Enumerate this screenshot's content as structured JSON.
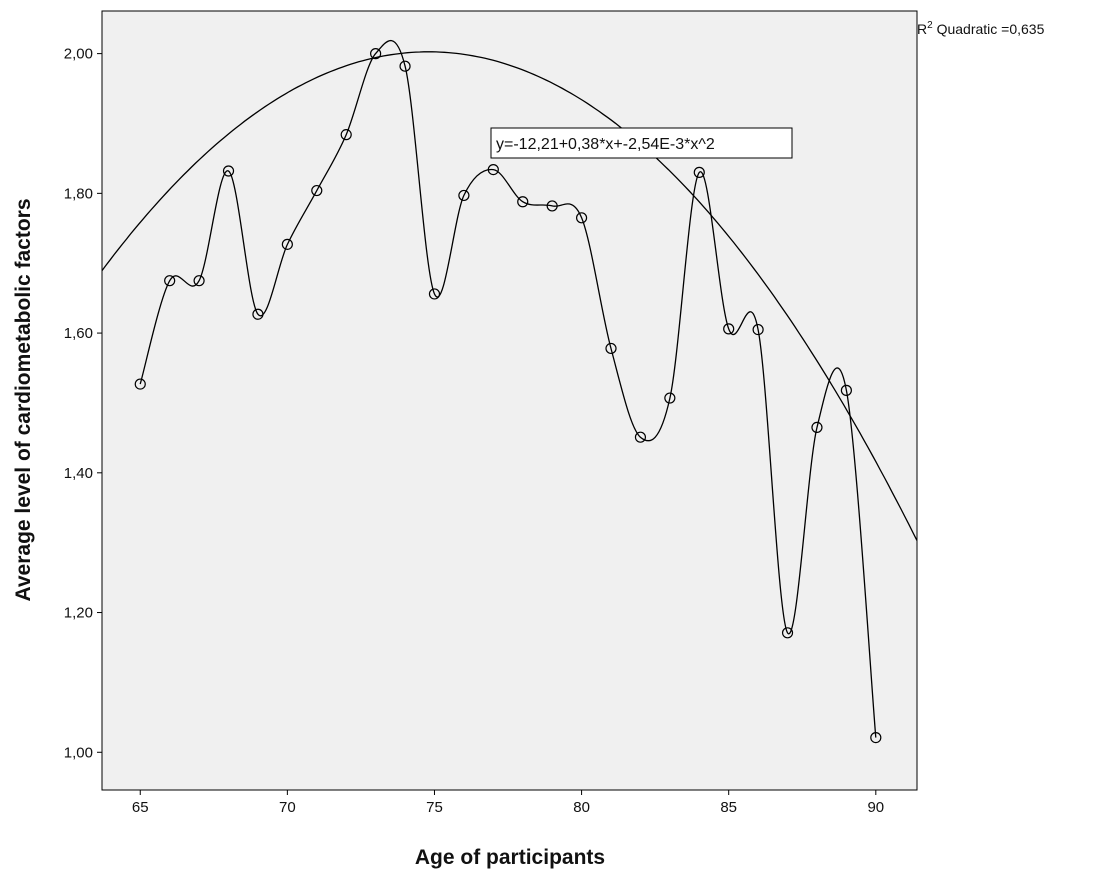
{
  "chart_data": {
    "type": "scatter",
    "xlabel": "Age of participants",
    "ylabel": "Average level of cardiometabolic factors",
    "xlim": [
      63.7,
      91.4
    ],
    "ylim": [
      0.946,
      2.061
    ],
    "xticks": [
      "65",
      "70",
      "75",
      "80",
      "85",
      "90"
    ],
    "xtick_values": [
      65,
      70,
      75,
      80,
      85,
      90
    ],
    "yticks": [
      "1,00",
      "1,20",
      "1,40",
      "1,60",
      "1,80",
      "2,00"
    ],
    "ytick_values": [
      1.0,
      1.2,
      1.4,
      1.6,
      1.8,
      2.0
    ],
    "grid": false,
    "plot_background": "#f0f0f0",
    "line_color": "#000000",
    "points": {
      "x": [
        65,
        66,
        67,
        68,
        69,
        70,
        71,
        72,
        73,
        74,
        75,
        76,
        77,
        78,
        79,
        80,
        81,
        82,
        83,
        84,
        85,
        86,
        87,
        88,
        89,
        90
      ],
      "y": [
        1.527,
        1.675,
        1.675,
        1.832,
        1.627,
        1.727,
        1.804,
        1.884,
        2.0,
        1.982,
        1.656,
        1.797,
        1.834,
        1.788,
        1.782,
        1.765,
        1.578,
        1.451,
        1.507,
        1.83,
        1.606,
        1.605,
        1.171,
        1.465,
        1.518,
        1.021
      ]
    },
    "fit": {
      "type": "quadratic",
      "coefficients": [
        -12.21,
        0.38,
        -0.00254
      ],
      "r2_label_prefix": "R",
      "r2_label_sup": "2",
      "r2_label_rest": " Quadratic =0,635",
      "equation": "y=-12,21+0,38*x+-2,54E-3*x^2"
    }
  }
}
